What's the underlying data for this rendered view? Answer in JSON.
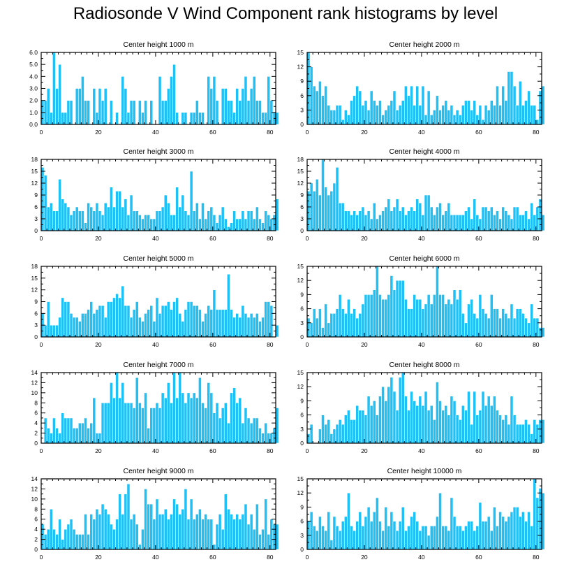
{
  "title": "Radiosonde V Wind Component rank histograms by level",
  "chart_data": [
    {
      "type": "bar",
      "title": "Center height 1000 m",
      "xlim": [
        0,
        82
      ],
      "ylim": [
        0,
        6
      ],
      "xticks": [
        0,
        20,
        40,
        60,
        80
      ],
      "yticks": [
        0,
        1,
        2,
        3,
        4,
        5,
        6
      ],
      "ytick_labels": [
        "0.0",
        "1.0",
        "2.0",
        "3.0",
        "4.0",
        "5.0",
        "6.0"
      ],
      "values": [
        2,
        2,
        3,
        1,
        6,
        3,
        5,
        1,
        1,
        2,
        2,
        0,
        3,
        3,
        4,
        2,
        2,
        0,
        3,
        1,
        3,
        2,
        3,
        0,
        2,
        0,
        1,
        0,
        4,
        3,
        1,
        2,
        2,
        0,
        2,
        1,
        2,
        0,
        2,
        0,
        0,
        4,
        2,
        2,
        3,
        4,
        5,
        1,
        0,
        1,
        1,
        0,
        1,
        1,
        2,
        1,
        1,
        0,
        4,
        3,
        4,
        2,
        0,
        3,
        3,
        2,
        2,
        1,
        3,
        2,
        3,
        4,
        2,
        3,
        4,
        2,
        2,
        1,
        1,
        4,
        2,
        1,
        1
      ]
    },
    {
      "type": "bar",
      "title": "Center height 2000 m",
      "xlim": [
        0,
        82
      ],
      "ylim": [
        0,
        15
      ],
      "xticks": [
        0,
        20,
        40,
        60,
        80
      ],
      "yticks": [
        0,
        3,
        6,
        9,
        12,
        15
      ],
      "ytick_labels": [
        "0",
        "3",
        "6",
        "9",
        "12",
        "15"
      ],
      "values": [
        15,
        12,
        8,
        7,
        9,
        6,
        8,
        4,
        3,
        3,
        4,
        4,
        1,
        3,
        2,
        5,
        6,
        8,
        7,
        4,
        5,
        3,
        7,
        5,
        4,
        5,
        2,
        3,
        4,
        5,
        7,
        3,
        4,
        5,
        8,
        6,
        8,
        4,
        8,
        4,
        8,
        2,
        7,
        2,
        3,
        6,
        3,
        4,
        5,
        3,
        4,
        2,
        3,
        2,
        4,
        5,
        5,
        3,
        5,
        2,
        4,
        1,
        4,
        3,
        5,
        4,
        8,
        4,
        8,
        5,
        11,
        11,
        8,
        4,
        9,
        4,
        5,
        7,
        4,
        4,
        1,
        7,
        8
      ]
    },
    {
      "type": "bar",
      "title": "Center height 3000 m",
      "xlim": [
        0,
        82
      ],
      "ylim": [
        0,
        18
      ],
      "xticks": [
        0,
        20,
        40,
        60,
        80
      ],
      "yticks": [
        0,
        3,
        6,
        9,
        12,
        15,
        18
      ],
      "ytick_labels": [
        "0",
        "3",
        "6",
        "9",
        "12",
        "15",
        "18"
      ],
      "values": [
        16,
        14,
        6,
        7,
        5,
        5,
        13,
        8,
        7,
        6,
        4,
        5,
        6,
        5,
        5,
        2,
        7,
        6,
        5,
        7,
        5,
        4,
        7,
        6,
        11,
        6,
        10,
        10,
        6,
        8,
        4,
        9,
        5,
        5,
        4,
        3,
        4,
        4,
        3,
        3,
        5,
        5,
        6,
        9,
        7,
        4,
        4,
        11,
        6,
        9,
        5,
        4,
        15,
        5,
        7,
        3,
        7,
        3,
        5,
        6,
        4,
        2,
        4,
        6,
        3,
        1,
        2,
        5,
        3,
        3,
        5,
        3,
        5,
        5,
        3,
        6,
        3,
        2,
        5,
        4,
        3,
        4,
        8
      ]
    },
    {
      "type": "bar",
      "title": "Center height 4000 m",
      "xlim": [
        0,
        82
      ],
      "ylim": [
        0,
        18
      ],
      "xticks": [
        0,
        20,
        40,
        60,
        80
      ],
      "yticks": [
        0,
        3,
        6,
        9,
        12,
        15,
        18
      ],
      "ytick_labels": [
        "0",
        "3",
        "6",
        "9",
        "12",
        "15",
        "18"
      ],
      "values": [
        10,
        12,
        10,
        13,
        9,
        18,
        11,
        9,
        10,
        12,
        16,
        7,
        7,
        5,
        5,
        4,
        5,
        4,
        5,
        6,
        4,
        5,
        3,
        7,
        3,
        4,
        5,
        6,
        8,
        5,
        6,
        8,
        5,
        6,
        4,
        5,
        6,
        5,
        8,
        7,
        4,
        9,
        9,
        6,
        4,
        6,
        7,
        4,
        5,
        7,
        4,
        4,
        4,
        4,
        4,
        5,
        6,
        3,
        8,
        4,
        3,
        6,
        6,
        5,
        6,
        4,
        5,
        3,
        6,
        5,
        4,
        3,
        6,
        6,
        4,
        4,
        5,
        3,
        7,
        4,
        6,
        8,
        4
      ]
    },
    {
      "type": "bar",
      "title": "Center height 5000 m",
      "xlim": [
        0,
        82
      ],
      "ylim": [
        0,
        18
      ],
      "xticks": [
        0,
        20,
        40,
        60,
        80
      ],
      "yticks": [
        0,
        3,
        6,
        9,
        12,
        15,
        18
      ],
      "ytick_labels": [
        "0",
        "3",
        "6",
        "9",
        "12",
        "15",
        "18"
      ],
      "values": [
        6,
        3,
        9,
        3,
        3,
        3,
        5,
        10,
        9,
        9,
        6,
        5,
        5,
        4,
        6,
        6,
        7,
        9,
        6,
        7,
        8,
        8,
        5,
        9,
        9,
        10,
        11,
        10,
        13,
        8,
        8,
        5,
        7,
        9,
        5,
        4,
        6,
        7,
        8,
        4,
        10,
        6,
        8,
        8,
        9,
        7,
        9,
        10,
        6,
        4,
        7,
        9,
        9,
        8,
        8,
        7,
        4,
        6,
        8,
        7,
        12,
        7,
        7,
        7,
        7,
        16,
        7,
        5,
        6,
        5,
        8,
        6,
        5,
        6,
        5,
        6,
        4,
        5,
        9,
        9,
        8,
        0,
        3
      ]
    },
    {
      "type": "bar",
      "title": "Center height 6000 m",
      "xlim": [
        0,
        82
      ],
      "ylim": [
        0,
        15
      ],
      "xticks": [
        0,
        20,
        40,
        60,
        80
      ],
      "yticks": [
        0,
        3,
        6,
        9,
        12,
        15
      ],
      "ytick_labels": [
        "0",
        "3",
        "6",
        "9",
        "12",
        "15"
      ],
      "values": [
        4,
        3,
        6,
        4,
        6,
        2,
        7,
        3,
        5,
        5,
        6,
        9,
        6,
        5,
        8,
        5,
        6,
        4,
        5,
        7,
        9,
        9,
        9,
        10,
        15,
        9,
        8,
        8,
        9,
        13,
        10,
        12,
        12,
        12,
        8,
        6,
        6,
        9,
        8,
        8,
        6,
        7,
        9,
        7,
        9,
        15,
        9,
        9,
        7,
        8,
        7,
        10,
        8,
        10,
        5,
        3,
        7,
        8,
        5,
        4,
        9,
        6,
        5,
        4,
        9,
        6,
        6,
        4,
        6,
        5,
        4,
        7,
        4,
        6,
        6,
        5,
        4,
        3,
        7,
        4,
        4,
        2,
        2
      ]
    },
    {
      "type": "bar",
      "title": "Center height 7000 m",
      "xlim": [
        0,
        82
      ],
      "ylim": [
        0,
        14
      ],
      "xticks": [
        0,
        20,
        40,
        60,
        80
      ],
      "yticks": [
        0,
        2,
        4,
        6,
        8,
        10,
        12,
        14
      ],
      "ytick_labels": [
        "0",
        "2",
        "4",
        "6",
        "8",
        "10",
        "12",
        "14"
      ],
      "values": [
        0,
        5,
        3,
        2,
        5,
        3,
        2,
        6,
        5,
        5,
        5,
        3,
        3,
        4,
        4,
        5,
        3,
        4,
        9,
        2,
        2,
        8,
        8,
        8,
        12,
        9,
        14,
        9,
        12,
        8,
        8,
        8,
        7,
        13,
        8,
        7,
        10,
        3,
        7,
        7,
        8,
        7,
        10,
        9,
        12,
        8,
        14,
        9,
        14,
        10,
        8,
        10,
        9,
        10,
        9,
        13,
        8,
        7,
        12,
        10,
        6,
        8,
        5,
        7,
        8,
        4,
        10,
        11,
        8,
        9,
        4,
        7,
        5,
        4,
        5,
        5,
        3,
        2,
        4,
        2,
        2,
        3,
        7
      ]
    },
    {
      "type": "bar",
      "title": "Center height 8000 m",
      "xlim": [
        0,
        82
      ],
      "ylim": [
        0,
        15
      ],
      "xticks": [
        0,
        20,
        40,
        60,
        80
      ],
      "yticks": [
        0,
        3,
        6,
        9,
        12,
        15
      ],
      "ytick_labels": [
        "0",
        "3",
        "6",
        "9",
        "12",
        "15"
      ],
      "values": [
        2,
        4,
        0,
        0,
        3,
        6,
        4,
        5,
        2,
        3,
        4,
        5,
        4,
        6,
        7,
        5,
        5,
        8,
        7,
        7,
        6,
        10,
        8,
        9,
        6,
        10,
        12,
        9,
        12,
        14,
        11,
        7,
        14,
        15,
        10,
        7,
        11,
        9,
        8,
        10,
        8,
        11,
        7,
        8,
        5,
        13,
        9,
        7,
        8,
        6,
        10,
        9,
        6,
        5,
        8,
        7,
        11,
        4,
        11,
        6,
        7,
        11,
        8,
        10,
        8,
        10,
        7,
        6,
        5,
        6,
        4,
        10,
        6,
        4,
        4,
        4,
        5,
        4,
        2,
        5,
        4,
        5,
        5
      ]
    },
    {
      "type": "bar",
      "title": "Center height 9000 m",
      "xlim": [
        0,
        82
      ],
      "ylim": [
        0,
        14
      ],
      "xticks": [
        0,
        20,
        40,
        60,
        80
      ],
      "yticks": [
        0,
        2,
        4,
        6,
        8,
        10,
        12,
        14
      ],
      "ytick_labels": [
        "0",
        "2",
        "4",
        "6",
        "8",
        "10",
        "12",
        "14"
      ],
      "values": [
        5,
        3,
        4,
        8,
        4,
        3,
        6,
        2,
        4,
        5,
        6,
        4,
        3,
        3,
        3,
        7,
        3,
        7,
        6,
        8,
        7,
        9,
        8,
        7,
        5,
        4,
        6,
        11,
        7,
        11,
        13,
        6,
        7,
        5,
        1,
        4,
        12,
        9,
        9,
        6,
        10,
        7,
        7,
        8,
        6,
        7,
        10,
        9,
        7,
        8,
        12,
        6,
        10,
        6,
        7,
        8,
        6,
        7,
        6,
        6,
        1,
        5,
        7,
        4,
        11,
        8,
        7,
        6,
        7,
        6,
        7,
        9,
        5,
        7,
        4,
        9,
        3,
        4,
        10,
        3,
        6,
        5,
        5
      ]
    },
    {
      "type": "bar",
      "title": "Center height 10000 m",
      "xlim": [
        0,
        82
      ],
      "ylim": [
        0,
        15
      ],
      "xticks": [
        0,
        20,
        40,
        60,
        80
      ],
      "yticks": [
        0,
        3,
        6,
        9,
        12,
        15
      ],
      "ytick_labels": [
        "0",
        "3",
        "6",
        "9",
        "12",
        "15"
      ],
      "values": [
        6,
        8,
        5,
        4,
        7,
        5,
        4,
        8,
        2,
        7,
        5,
        4,
        6,
        7,
        12,
        5,
        4,
        6,
        8,
        5,
        7,
        9,
        6,
        8,
        11,
        6,
        4,
        9,
        5,
        8,
        6,
        4,
        6,
        9,
        4,
        5,
        7,
        8,
        6,
        4,
        5,
        5,
        3,
        5,
        5,
        7,
        12,
        5,
        5,
        4,
        11,
        7,
        5,
        5,
        4,
        5,
        6,
        6,
        4,
        5,
        10,
        6,
        6,
        7,
        4,
        9,
        5,
        8,
        7,
        6,
        7,
        8,
        9,
        9,
        7,
        8,
        6,
        8,
        5,
        15,
        11,
        13,
        12
      ]
    }
  ]
}
